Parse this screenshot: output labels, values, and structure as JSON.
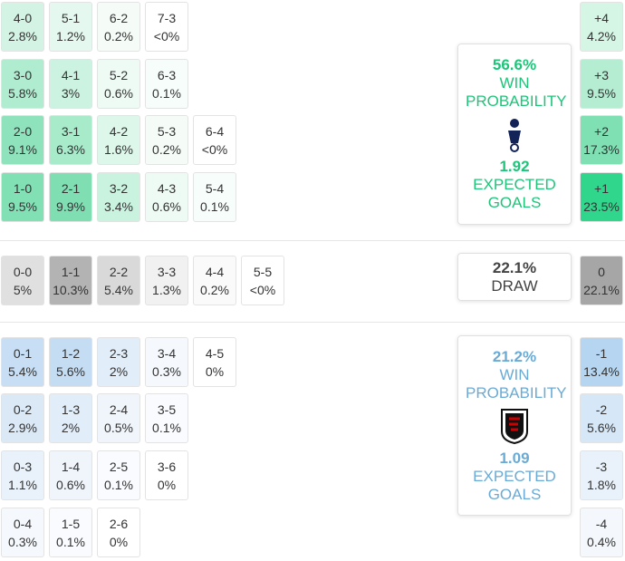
{
  "home": {
    "rows": [
      [
        {
          "score": "4-0",
          "pct": "2.8%",
          "color": "#d3f4e4"
        },
        {
          "score": "5-1",
          "pct": "1.2%",
          "color": "#e5f8ef"
        },
        {
          "score": "6-2",
          "pct": "0.2%",
          "color": "#f5fcf8"
        },
        {
          "score": "7-3",
          "pct": "<0%",
          "color": "#ffffff"
        }
      ],
      [
        {
          "score": "3-0",
          "pct": "5.8%",
          "color": "#b0ecd0"
        },
        {
          "score": "4-1",
          "pct": "3%",
          "color": "#ccf3e1"
        },
        {
          "score": "5-2",
          "pct": "0.6%",
          "color": "#eefbf4"
        },
        {
          "score": "6-3",
          "pct": "0.1%",
          "color": "#f7fdfa"
        }
      ],
      [
        {
          "score": "2-0",
          "pct": "9.1%",
          "color": "#8ee3bc"
        },
        {
          "score": "3-1",
          "pct": "6.3%",
          "color": "#a8ebcb"
        },
        {
          "score": "4-2",
          "pct": "1.6%",
          "color": "#def7eb"
        },
        {
          "score": "5-3",
          "pct": "0.2%",
          "color": "#f5fcf8"
        },
        {
          "score": "6-4",
          "pct": "<0%",
          "color": "#ffffff"
        }
      ],
      [
        {
          "score": "1-0",
          "pct": "9.5%",
          "color": "#82e0b5"
        },
        {
          "score": "2-1",
          "pct": "9.9%",
          "color": "#7fdfb3"
        },
        {
          "score": "3-2",
          "pct": "3.4%",
          "color": "#c9f2df"
        },
        {
          "score": "4-3",
          "pct": "0.6%",
          "color": "#eefbf4"
        },
        {
          "score": "5-4",
          "pct": "0.1%",
          "color": "#f7fdfa"
        }
      ]
    ],
    "margins": [
      {
        "score": "+4",
        "pct": "4.2%",
        "color": "#d5f5e5"
      },
      {
        "score": "+3",
        "pct": "9.5%",
        "color": "#b5edd3"
      },
      {
        "score": "+2",
        "pct": "17.3%",
        "color": "#7fe0b3"
      },
      {
        "score": "+1",
        "pct": "23.5%",
        "color": "#2fd68c"
      }
    ],
    "info": {
      "win_pct": "56.6%",
      "win_label": "WIN PROBABILITY",
      "xg": "1.92",
      "xg_label": "EXPECTED GOALS",
      "color": "#1fc47a"
    }
  },
  "draw": {
    "rows": [
      [
        {
          "score": "0-0",
          "pct": "5%",
          "color": "#e0e0e0"
        },
        {
          "score": "1-1",
          "pct": "10.3%",
          "color": "#b3b3b3"
        },
        {
          "score": "2-2",
          "pct": "5.4%",
          "color": "#d9d9d9"
        },
        {
          "score": "3-3",
          "pct": "1.3%",
          "color": "#f1f1f1"
        },
        {
          "score": "4-4",
          "pct": "0.2%",
          "color": "#fafafa"
        },
        {
          "score": "5-5",
          "pct": "<0%",
          "color": "#ffffff"
        }
      ]
    ],
    "margins": [
      {
        "score": "0",
        "pct": "22.1%",
        "color": "#a6a6a6"
      }
    ],
    "info": {
      "win_pct": "22.1%",
      "win_label": "DRAW",
      "color": "#444444"
    }
  },
  "away": {
    "rows": [
      [
        {
          "score": "0-1",
          "pct": "5.4%",
          "color": "#c7def4"
        },
        {
          "score": "1-2",
          "pct": "5.6%",
          "color": "#c5ddf3"
        },
        {
          "score": "2-3",
          "pct": "2%",
          "color": "#e1edf8"
        },
        {
          "score": "3-4",
          "pct": "0.3%",
          "color": "#f5f9fd"
        },
        {
          "score": "4-5",
          "pct": "0%",
          "color": "#ffffff"
        }
      ],
      [
        {
          "score": "0-2",
          "pct": "2.9%",
          "color": "#dbe9f7"
        },
        {
          "score": "1-3",
          "pct": "2%",
          "color": "#e1edf8"
        },
        {
          "score": "2-4",
          "pct": "0.5%",
          "color": "#f0f5fb"
        },
        {
          "score": "3-5",
          "pct": "0.1%",
          "color": "#f9fbfe"
        }
      ],
      [
        {
          "score": "0-3",
          "pct": "1.1%",
          "color": "#e9f2fa"
        },
        {
          "score": "1-4",
          "pct": "0.6%",
          "color": "#f0f5fb"
        },
        {
          "score": "2-5",
          "pct": "0.1%",
          "color": "#f9fbfe"
        },
        {
          "score": "3-6",
          "pct": "0%",
          "color": "#ffffff"
        }
      ],
      [
        {
          "score": "0-4",
          "pct": "0.3%",
          "color": "#f5f9fd"
        },
        {
          "score": "1-5",
          "pct": "0.1%",
          "color": "#f9fbfe"
        },
        {
          "score": "2-6",
          "pct": "0%",
          "color": "#ffffff"
        }
      ]
    ],
    "margins": [
      {
        "score": "-1",
        "pct": "13.4%",
        "color": "#b5d5f0"
      },
      {
        "score": "-2",
        "pct": "5.6%",
        "color": "#d6e7f7"
      },
      {
        "score": "-3",
        "pct": "1.8%",
        "color": "#e9f2fa"
      },
      {
        "score": "-4",
        "pct": "0.4%",
        "color": "#f4f8fc"
      }
    ],
    "info": {
      "win_pct": "21.2%",
      "win_label": "WIN PROBABILITY",
      "xg": "1.09",
      "xg_label": "EXPECTED GOALS",
      "color": "#6aabd6"
    }
  }
}
